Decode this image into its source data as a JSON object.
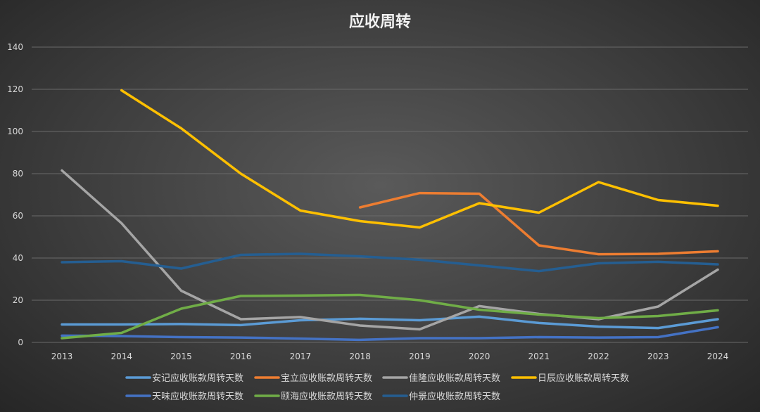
{
  "chart_data": {
    "type": "line",
    "title": "应收周转",
    "xlabel": "",
    "ylabel": "",
    "x": [
      "2013",
      "2014",
      "2015",
      "2016",
      "2017",
      "2018",
      "2019",
      "2020",
      "2021",
      "2022",
      "2023",
      "2024"
    ],
    "ylim": [
      0,
      140
    ],
    "yticks": [
      "0",
      "20",
      "40",
      "60",
      "80",
      "100",
      "120",
      "140"
    ],
    "grid": true,
    "legend_position": "bottom",
    "series": [
      {
        "name": "安记应收账款周转天数",
        "color": "#5b9bd5",
        "values": [
          8.5,
          8.5,
          8.7,
          8.2,
          10.5,
          11.2,
          10.5,
          12.2,
          9.2,
          7.5,
          6.8,
          11.0
        ]
      },
      {
        "name": "宝立应收账款周转天数",
        "color": "#ed7d31",
        "values": [
          null,
          null,
          null,
          null,
          null,
          64.0,
          70.8,
          70.5,
          46.0,
          41.8,
          42.0,
          43.2
        ]
      },
      {
        "name": "佳隆应收账款周转天数",
        "color": "#a5a5a5",
        "values": [
          81.5,
          56.5,
          24.5,
          11.0,
          12.0,
          8.0,
          6.2,
          17.2,
          13.5,
          11.0,
          17.0,
          34.5
        ]
      },
      {
        "name": "日辰应收账款周转天数",
        "color": "#ffc000",
        "values": [
          null,
          119.5,
          101.5,
          80.0,
          62.5,
          57.5,
          54.5,
          66.0,
          61.5,
          76.0,
          67.5,
          64.8
        ]
      },
      {
        "name": "天味应收账款周转天数",
        "color": "#4472c4",
        "values": [
          3.2,
          3.0,
          2.5,
          2.3,
          1.8,
          1.2,
          2.0,
          2.0,
          2.5,
          2.3,
          2.5,
          7.2
        ]
      },
      {
        "name": "颐海应收账款周转天数",
        "color": "#70ad47",
        "values": [
          2.0,
          4.5,
          16.0,
          22.0,
          22.2,
          22.5,
          20.0,
          15.5,
          13.2,
          11.5,
          12.5,
          15.2
        ]
      },
      {
        "name": "仲景应收账款周转天数",
        "color": "#255e91",
        "values": [
          38.0,
          38.5,
          35.0,
          41.5,
          42.0,
          40.8,
          39.2,
          36.5,
          33.8,
          37.5,
          38.2,
          37.0
        ]
      }
    ]
  }
}
